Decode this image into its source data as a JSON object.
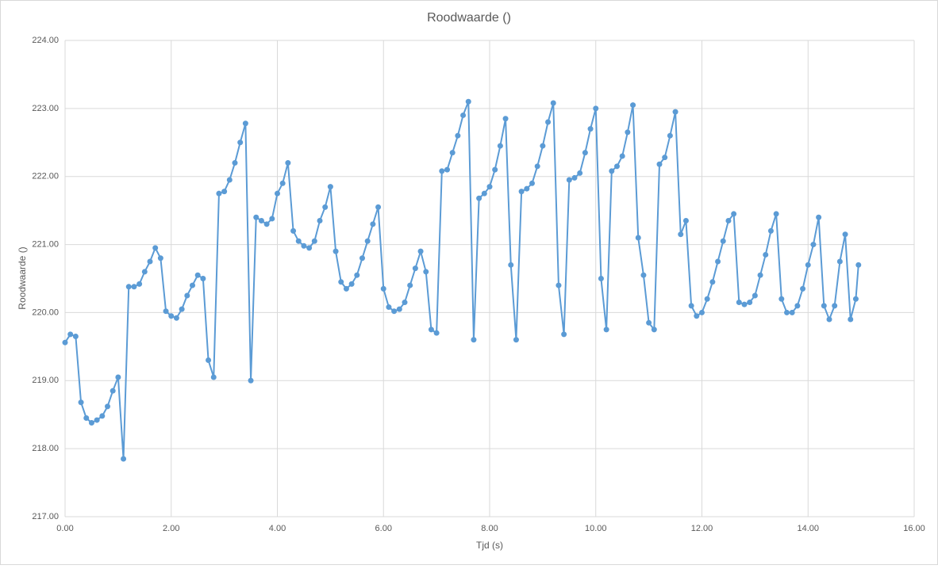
{
  "chart_data": {
    "type": "line",
    "title": "Roodwaarde ()",
    "x_label": "Tjd (s)",
    "y_label": "Roodwaarde ()",
    "x": [
      0.0,
      0.1,
      0.2,
      0.3,
      0.4,
      0.5,
      0.6,
      0.7,
      0.8,
      0.9,
      1.0,
      1.1,
      1.2,
      1.3,
      1.4,
      1.5,
      1.6,
      1.7,
      1.8,
      1.9,
      2.0,
      2.1,
      2.2,
      2.3,
      2.4,
      2.5,
      2.6,
      2.7,
      2.8,
      2.9,
      3.0,
      3.1,
      3.2,
      3.3,
      3.4,
      3.5,
      3.6,
      3.7,
      3.8,
      3.9,
      4.0,
      4.1,
      4.2,
      4.3,
      4.4,
      4.5,
      4.6,
      4.7,
      4.8,
      4.9,
      5.0,
      5.1,
      5.2,
      5.3,
      5.4,
      5.5,
      5.6,
      5.7,
      5.8,
      5.9,
      6.0,
      6.1,
      6.2,
      6.3,
      6.4,
      6.5,
      6.6,
      6.7,
      6.8,
      6.9,
      7.0,
      7.1,
      7.2,
      7.3,
      7.4,
      7.5,
      7.6,
      7.7,
      7.8,
      7.9,
      8.0,
      8.1,
      8.2,
      8.3,
      8.4,
      8.5,
      8.6,
      8.7,
      8.8,
      8.9,
      9.0,
      9.1,
      9.2,
      9.3,
      9.4,
      9.5,
      9.6,
      9.7,
      9.8,
      9.9,
      10.0,
      10.1,
      10.2,
      10.3,
      10.4,
      10.5,
      10.6,
      10.7,
      10.8,
      10.9,
      11.0,
      11.1,
      11.2,
      11.3,
      11.4,
      11.5,
      11.6,
      11.7,
      11.8,
      11.9,
      12.0,
      12.1,
      12.2,
      12.3,
      12.4,
      12.5,
      12.6,
      12.7,
      12.8,
      12.9,
      13.0,
      13.1,
      13.2,
      13.3,
      13.4,
      13.5,
      13.6,
      13.7,
      13.8,
      13.9,
      14.0,
      14.1,
      14.2,
      14.3,
      14.4,
      14.5,
      14.6,
      14.7,
      14.8,
      14.9,
      14.95
    ],
    "series": [
      {
        "name": "Roodwaarde ()",
        "color": "#5b9bd5",
        "values": [
          219.56,
          219.68,
          219.65,
          218.68,
          218.45,
          218.38,
          218.42,
          218.48,
          218.62,
          218.85,
          219.05,
          217.85,
          220.38,
          220.38,
          220.42,
          220.6,
          220.75,
          220.95,
          220.8,
          220.02,
          219.95,
          219.92,
          220.05,
          220.25,
          220.4,
          220.55,
          220.5,
          219.3,
          219.05,
          221.75,
          221.78,
          221.95,
          222.2,
          222.5,
          222.78,
          219.0,
          221.4,
          221.35,
          221.3,
          221.38,
          221.75,
          221.9,
          222.2,
          221.2,
          221.05,
          220.98,
          220.95,
          221.05,
          221.35,
          221.55,
          221.85,
          220.9,
          220.45,
          220.35,
          220.42,
          220.55,
          220.8,
          221.05,
          221.3,
          221.55,
          220.35,
          220.08,
          220.02,
          220.05,
          220.15,
          220.4,
          220.65,
          220.9,
          220.6,
          219.75,
          219.7,
          222.08,
          222.1,
          222.35,
          222.6,
          222.9,
          223.1,
          219.6,
          221.68,
          221.75,
          221.85,
          222.1,
          222.45,
          222.85,
          220.7,
          219.6,
          221.78,
          221.82,
          221.9,
          222.15,
          222.45,
          222.8,
          223.08,
          220.4,
          219.68,
          221.95,
          221.98,
          222.05,
          222.35,
          222.7,
          223.0,
          220.5,
          219.75,
          222.08,
          222.15,
          222.3,
          222.65,
          223.05,
          221.1,
          220.55,
          219.85,
          219.75,
          222.18,
          222.28,
          222.6,
          222.95,
          221.15,
          221.35,
          220.1,
          219.95,
          220.0,
          220.2,
          220.45,
          220.75,
          221.05,
          221.35,
          221.45,
          220.15,
          220.12,
          220.15,
          220.25,
          220.55,
          220.85,
          221.2,
          221.45,
          220.2,
          220.0,
          220.0,
          220.1,
          220.35,
          220.7,
          221.0,
          221.4,
          220.1,
          219.9,
          220.1,
          220.75,
          221.15,
          219.9,
          220.2,
          220.7
        ]
      }
    ],
    "xlim": [
      0,
      16
    ],
    "ylim": [
      217,
      224
    ],
    "xticks": [
      {
        "value": 0,
        "label": "0.00"
      },
      {
        "value": 2,
        "label": "2.00"
      },
      {
        "value": 4,
        "label": "4.00"
      },
      {
        "value": 6,
        "label": "6.00"
      },
      {
        "value": 8,
        "label": "8.00"
      },
      {
        "value": 10,
        "label": "10.00"
      },
      {
        "value": 12,
        "label": "12.00"
      },
      {
        "value": 14,
        "label": "14.00"
      },
      {
        "value": 16,
        "label": "16.00"
      }
    ],
    "yticks": [
      {
        "value": 217,
        "label": "217.00"
      },
      {
        "value": 218,
        "label": "218.00"
      },
      {
        "value": 219,
        "label": "219.00"
      },
      {
        "value": 220,
        "label": "220.00"
      },
      {
        "value": 221,
        "label": "221.00"
      },
      {
        "value": 222,
        "label": "222.00"
      },
      {
        "value": 223,
        "label": "223.00"
      },
      {
        "value": 224,
        "label": "224.00"
      }
    ],
    "grid": true
  }
}
